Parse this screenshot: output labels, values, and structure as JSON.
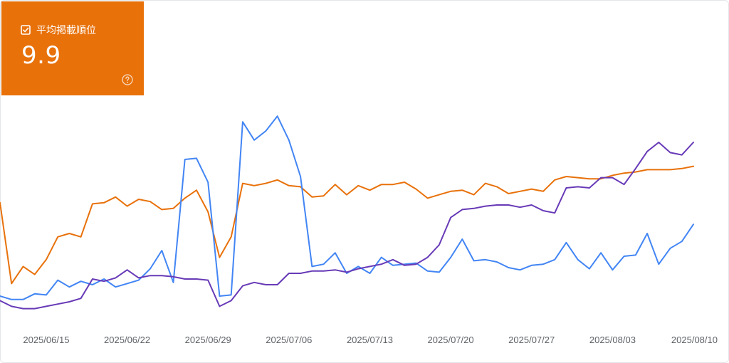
{
  "metric_card": {
    "label": "平均掲載順位",
    "value": "9.9",
    "color": "#e8710a",
    "checkbox_icon": "checkbox-checked-icon",
    "help_icon": "help-circle-icon"
  },
  "chart_data": {
    "type": "line",
    "x": [
      "2025/06/11",
      "2025/06/12",
      "2025/06/13",
      "2025/06/14",
      "2025/06/15",
      "2025/06/16",
      "2025/06/17",
      "2025/06/18",
      "2025/06/19",
      "2025/06/20",
      "2025/06/21",
      "2025/06/22",
      "2025/06/23",
      "2025/06/24",
      "2025/06/25",
      "2025/06/26",
      "2025/06/27",
      "2025/06/28",
      "2025/06/29",
      "2025/06/30",
      "2025/07/01",
      "2025/07/02",
      "2025/07/03",
      "2025/07/04",
      "2025/07/05",
      "2025/07/06",
      "2025/07/07",
      "2025/07/08",
      "2025/07/09",
      "2025/07/10",
      "2025/07/11",
      "2025/07/12",
      "2025/07/13",
      "2025/07/14",
      "2025/07/15",
      "2025/07/16",
      "2025/07/17",
      "2025/07/18",
      "2025/07/19",
      "2025/07/20",
      "2025/07/21",
      "2025/07/22",
      "2025/07/23",
      "2025/07/24",
      "2025/07/25",
      "2025/07/26",
      "2025/07/27",
      "2025/07/28",
      "2025/07/29",
      "2025/07/30",
      "2025/07/31",
      "2025/08/01",
      "2025/08/02",
      "2025/08/03",
      "2025/08/04",
      "2025/08/05",
      "2025/08/06",
      "2025/08/07",
      "2025/08/08",
      "2025/08/09",
      "2025/08/10"
    ],
    "x_tick_labels": [
      "2025/06/15",
      "2025/06/22",
      "2025/06/29",
      "2025/07/06",
      "2025/07/13",
      "2025/07/20",
      "2025/07/27",
      "2025/08/03",
      "2025/08/10"
    ],
    "series": [
      {
        "color": "#e8710a",
        "values": [
          0.92,
          0.21,
          0.36,
          0.29,
          0.42,
          0.62,
          0.65,
          0.62,
          0.91,
          0.92,
          0.97,
          0.89,
          0.95,
          0.93,
          0.86,
          0.87,
          0.96,
          1.03,
          0.84,
          0.44,
          0.62,
          1.09,
          1.07,
          1.09,
          1.12,
          1.07,
          1.06,
          0.97,
          0.98,
          1.08,
          0.99,
          1.07,
          1.03,
          1.08,
          1.08,
          1.1,
          1.04,
          0.96,
          0.99,
          1.02,
          1.03,
          0.99,
          1.09,
          1.06,
          1.0,
          1.02,
          1.04,
          1.02,
          1.12,
          1.15,
          1.14,
          1.13,
          1.13,
          1.16,
          1.18,
          1.19,
          1.21,
          1.21,
          1.21,
          1.22,
          1.24
        ]
      },
      {
        "color": "#4285f4",
        "values": [
          0.1,
          0.07,
          0.07,
          0.12,
          0.11,
          0.24,
          0.18,
          0.23,
          0.2,
          0.25,
          0.18,
          0.21,
          0.24,
          0.34,
          0.5,
          0.22,
          1.3,
          1.31,
          1.1,
          0.1,
          0.11,
          1.63,
          1.47,
          1.55,
          1.68,
          1.47,
          1.15,
          0.36,
          0.38,
          0.48,
          0.3,
          0.36,
          0.3,
          0.44,
          0.37,
          0.38,
          0.39,
          0.32,
          0.31,
          0.44,
          0.6,
          0.41,
          0.42,
          0.4,
          0.35,
          0.33,
          0.37,
          0.38,
          0.42,
          0.57,
          0.42,
          0.34,
          0.48,
          0.33,
          0.45,
          0.46,
          0.65,
          0.38,
          0.52,
          0.58,
          0.73
        ]
      },
      {
        "color": "#673ab7",
        "values": [
          0.06,
          0.01,
          -0.01,
          -0.01,
          0.01,
          0.03,
          0.05,
          0.08,
          0.25,
          0.23,
          0.26,
          0.33,
          0.26,
          0.28,
          0.28,
          0.27,
          0.25,
          0.25,
          0.24,
          0.01,
          0.06,
          0.19,
          0.22,
          0.2,
          0.2,
          0.3,
          0.3,
          0.32,
          0.32,
          0.33,
          0.31,
          0.34,
          0.36,
          0.38,
          0.42,
          0.37,
          0.38,
          0.44,
          0.55,
          0.79,
          0.86,
          0.87,
          0.89,
          0.9,
          0.9,
          0.88,
          0.9,
          0.85,
          0.83,
          1.05,
          1.06,
          1.05,
          1.14,
          1.14,
          1.08,
          1.22,
          1.37,
          1.45,
          1.36,
          1.34,
          1.45
        ]
      }
    ],
    "grid": false,
    "legend": "none"
  }
}
